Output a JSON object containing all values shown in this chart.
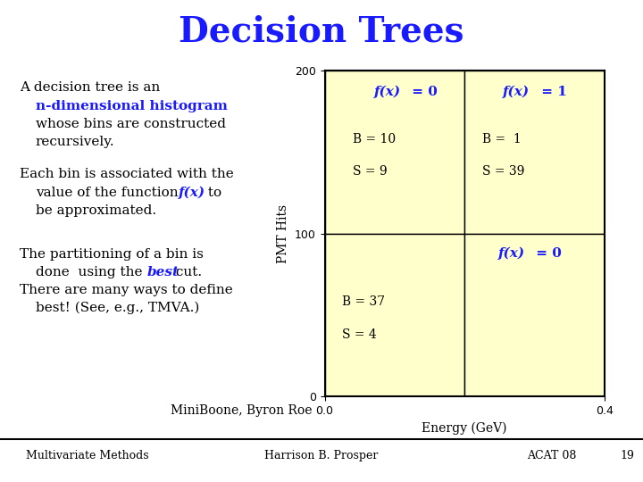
{
  "title": "Decision Trees",
  "title_color": "#1a1aff",
  "title_fontsize": 28,
  "background_color": "#ffffff",
  "cell_bg_color": "#ffffcc",
  "cell_border_color": "#000000",
  "text_color": "#000000",
  "blue_text_color": "#1a1aff",
  "footer_text_left": "Multivariate Methods",
  "footer_text_center": "Harrison B. Prosper",
  "footer_text_right1": "ACAT 08",
  "footer_text_right2": "19",
  "miniboone_text": "MiniBoone, Byron Roe",
  "ylim": [
    0,
    200
  ],
  "xlim": [
    0,
    0.4
  ],
  "yticks": [
    0,
    100,
    200
  ],
  "xticks": [
    0,
    0.4
  ],
  "ylabel": "PMT Hits",
  "xlabel": "Energy (GeV)"
}
